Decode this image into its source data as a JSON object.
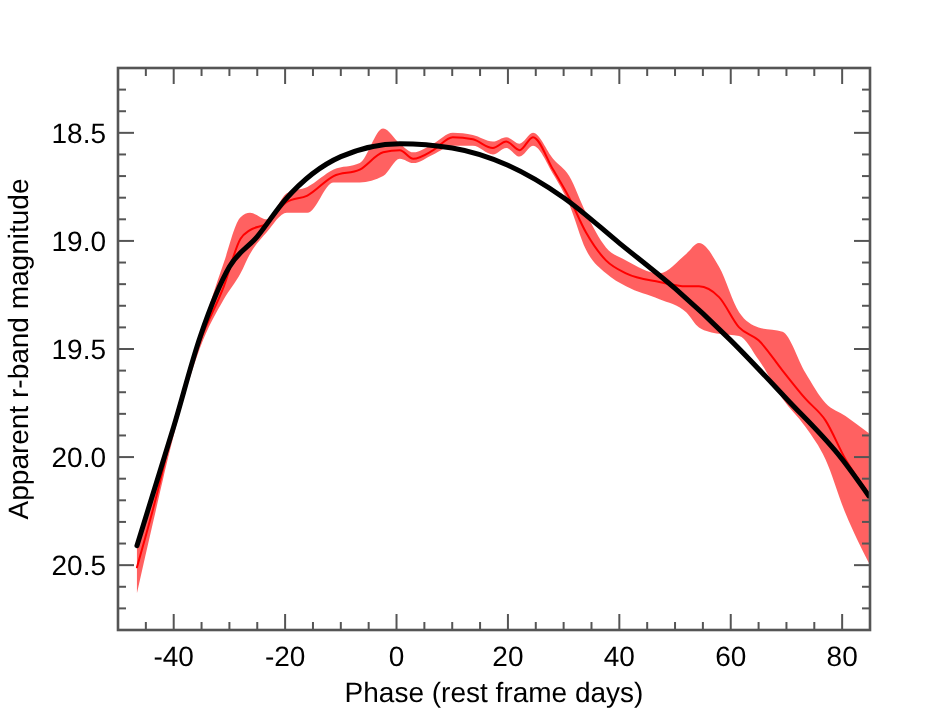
{
  "chart_data": {
    "type": "line",
    "xlabel": "Phase (rest frame days)",
    "ylabel": "Apparent r-band magnitude",
    "xlim": [
      -50,
      85
    ],
    "ylim": [
      20.8,
      18.2
    ],
    "xticks": [
      {
        "value": -50,
        "label": null
      },
      {
        "value": -45,
        "label": null
      },
      -40,
      {
        "value": -35,
        "label": null
      },
      {
        "value": -30,
        "label": null
      },
      {
        "value": -25,
        "label": null
      },
      -20,
      {
        "value": -15,
        "label": null
      },
      {
        "value": -10,
        "label": null
      },
      {
        "value": -5,
        "label": null
      },
      0,
      {
        "value": 5,
        "label": null
      },
      {
        "value": 10,
        "label": null
      },
      {
        "value": 15,
        "label": null
      },
      20,
      {
        "value": 25,
        "label": null
      },
      {
        "value": 30,
        "label": null
      },
      {
        "value": 35,
        "label": null
      },
      40,
      {
        "value": 45,
        "label": null
      },
      {
        "value": 50,
        "label": null
      },
      {
        "value": 55,
        "label": null
      },
      60,
      {
        "value": 65,
        "label": null
      },
      {
        "value": 70,
        "label": null
      },
      {
        "value": 75,
        "label": null
      },
      80,
      {
        "value": 85,
        "label": null
      }
    ],
    "yticks": [
      {
        "value": 20.8,
        "label": null
      },
      {
        "value": 20.7,
        "label": null
      },
      {
        "value": 20.6,
        "label": null
      },
      {
        "value": 20.5,
        "label": "20.5"
      },
      {
        "value": 20.4,
        "label": null
      },
      {
        "value": 20.3,
        "label": null
      },
      {
        "value": 20.2,
        "label": null
      },
      {
        "value": 20.1,
        "label": null
      },
      {
        "value": 20.0,
        "label": "20.0"
      },
      {
        "value": 19.9,
        "label": null
      },
      {
        "value": 19.8,
        "label": null
      },
      {
        "value": 19.7,
        "label": null
      },
      {
        "value": 19.6,
        "label": null
      },
      {
        "value": 19.5,
        "label": "19.5"
      },
      {
        "value": 19.4,
        "label": null
      },
      {
        "value": 19.3,
        "label": null
      },
      {
        "value": 19.2,
        "label": null
      },
      {
        "value": 19.1,
        "label": null
      },
      {
        "value": 19.0,
        "label": "19.0"
      },
      {
        "value": 18.9,
        "label": null
      },
      {
        "value": 18.8,
        "label": null
      },
      {
        "value": 18.7,
        "label": null
      },
      {
        "value": 18.6,
        "label": null
      },
      {
        "value": 18.5,
        "label": "18.5"
      },
      {
        "value": 18.4,
        "label": null
      },
      {
        "value": 18.3,
        "label": null
      },
      {
        "value": 18.2,
        "label": null
      }
    ],
    "grid": false,
    "marker": "none",
    "line_style": "solid",
    "series": [
      {
        "color": "#ff0000",
        "x": [
          -46.6,
          -43.6,
          -40,
          -35.2,
          -31,
          -28,
          -26.3,
          -23.3,
          -19.7,
          -16,
          -11.3,
          -6.6,
          -2.4,
          0.6,
          3,
          6.6,
          10.1,
          13.7,
          17.3,
          19.7,
          22.1,
          24.5,
          28.1,
          31,
          34,
          37.6,
          41.2,
          47.2,
          52,
          54.3,
          57.9,
          61.5,
          65,
          69.3,
          73.4,
          77,
          80.6,
          84.8
        ],
        "values": [
          20.51,
          20.23,
          19.86,
          19.46,
          19.21,
          18.99,
          18.95,
          18.92,
          18.82,
          18.79,
          18.7,
          18.67,
          18.59,
          18.58,
          18.62,
          18.58,
          18.52,
          18.53,
          18.57,
          18.54,
          18.58,
          18.52,
          18.67,
          18.8,
          18.96,
          19.09,
          19.15,
          19.19,
          19.21,
          19.21,
          19.26,
          19.4,
          19.46,
          19.6,
          19.73,
          19.83,
          20.01,
          20.17
        ],
        "lower": [
          20.41,
          20.18,
          19.83,
          19.43,
          19.1,
          18.89,
          18.87,
          18.9,
          18.78,
          18.75,
          18.67,
          18.64,
          18.48,
          18.55,
          18.59,
          18.55,
          18.5,
          18.51,
          18.54,
          18.52,
          18.55,
          18.5,
          18.62,
          18.7,
          18.87,
          19.03,
          19.09,
          19.15,
          19.06,
          19.01,
          19.12,
          19.33,
          19.4,
          19.42,
          19.61,
          19.75,
          19.81,
          19.89
        ],
        "upper": [
          20.63,
          20.29,
          19.9,
          19.49,
          19.27,
          19.15,
          19.06,
          18.96,
          18.87,
          18.87,
          18.73,
          18.73,
          18.7,
          18.62,
          18.64,
          18.6,
          18.56,
          18.56,
          18.6,
          18.57,
          18.61,
          18.56,
          18.69,
          18.83,
          19.04,
          19.15,
          19.21,
          19.27,
          19.33,
          19.4,
          19.43,
          19.44,
          19.55,
          19.73,
          19.86,
          20.01,
          20.26,
          20.49
        ]
      },
      {
        "color": "#000000",
        "x": [
          -46.6,
          -40,
          -35.2,
          -30,
          -25,
          -20,
          -10,
          0.6,
          10,
          20,
          30,
          40,
          50,
          60,
          70,
          80,
          84.8
        ],
        "values": [
          20.41,
          19.86,
          19.44,
          19.12,
          18.98,
          18.81,
          18.61,
          18.55,
          18.57,
          18.65,
          18.8,
          19.01,
          19.22,
          19.46,
          19.73,
          20.01,
          20.18
        ]
      }
    ]
  }
}
